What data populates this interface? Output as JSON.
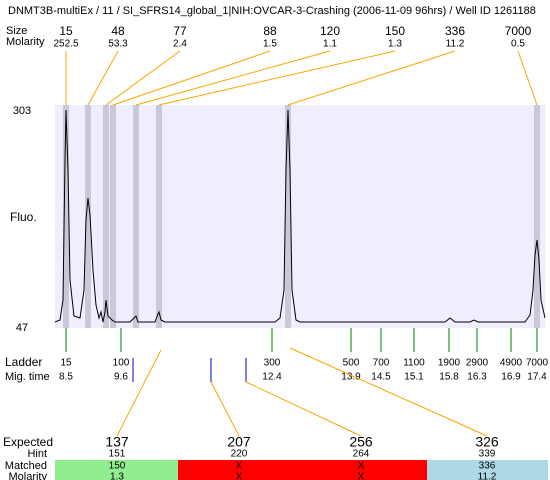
{
  "header": {
    "title": "DNMT3B-multiEx / 11 / SI_SFRS14_global_1|NIH:OVCAR-3-Crashing (2006-11-09 96hrs) / Well ID 1261188"
  },
  "peaks": {
    "size_label": "Size",
    "molarity_label": "Molarity",
    "sizes": [
      15,
      48,
      77,
      88,
      120,
      150,
      336,
      7000
    ],
    "molarities": [
      252.5,
      53.3,
      2.4,
      1.5,
      1.1,
      1.3,
      11.2,
      0.5
    ]
  },
  "plot": {
    "y_label": "Fluo.",
    "y_top": 303,
    "y_bottom": 47
  },
  "ladder": {
    "label": "Ladder",
    "time_label": "Mig. time",
    "sizes": [
      15,
      100,
      300,
      500,
      700,
      1100,
      1900,
      2900,
      4900,
      7000
    ],
    "times": [
      8.5,
      9.6,
      12.4,
      13.9,
      14.5,
      15.1,
      15.8,
      16.3,
      16.9,
      17.4
    ]
  },
  "expected": {
    "label": "Expected",
    "hint_label": "Hint",
    "matched_label": "Matched",
    "molarity_label": "Molarity",
    "sizes": [
      137,
      207,
      256,
      326
    ],
    "hints": [
      151,
      220,
      264,
      339
    ],
    "matched": [
      150,
      "X",
      "X",
      336
    ],
    "molarities": [
      1.3,
      "X",
      "X",
      11.2
    ]
  }
}
